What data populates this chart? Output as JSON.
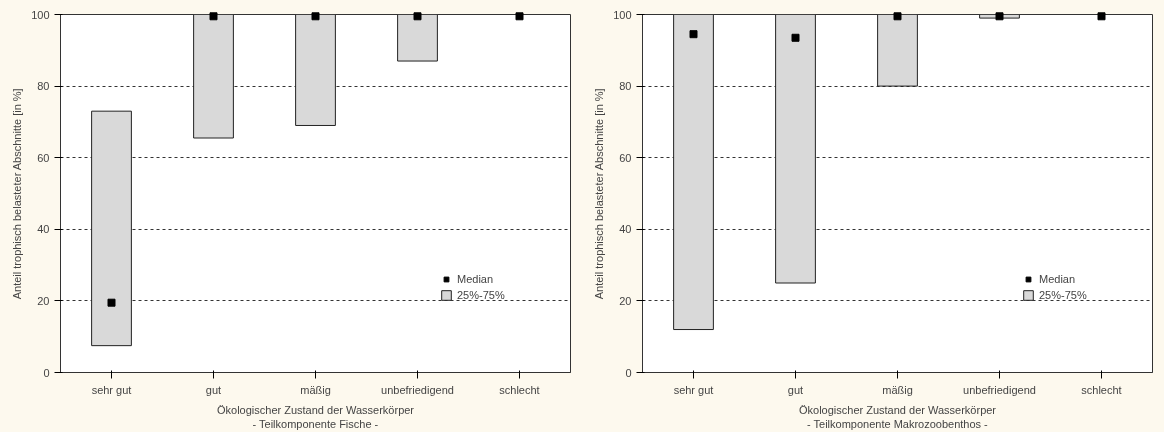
{
  "chart_data": [
    {
      "type": "bar",
      "categories": [
        "sehr gut",
        "gut",
        "mäßig",
        "unbefriedigend",
        "schlecht"
      ],
      "xlabel": "Ökologischer Zustand der Wasserkörper\n- Teilkomponente Fische -",
      "ylabel": "Anteil trophisch belasteter Abschnitte [in %]",
      "ylim": [
        0,
        100
      ],
      "yticks": [
        0,
        20,
        40,
        60,
        80,
        100
      ],
      "grid": "y",
      "legend": "right",
      "series": [
        {
          "name": "Median",
          "type": "scatter",
          "marker": "square",
          "color": "#000000",
          "values": [
            19.5,
            99.5,
            99.5,
            99.5,
            99.5
          ]
        },
        {
          "name": "25%-75%",
          "color": "#d9d9d9",
          "base": [
            7.5,
            65.5,
            69,
            87,
            null
          ],
          "values": [
            65.5,
            34.5,
            31,
            13,
            null
          ]
        }
      ]
    },
    {
      "type": "bar",
      "categories": [
        "sehr gut",
        "gut",
        "mäßig",
        "unbefriedigend",
        "schlecht"
      ],
      "xlabel": "Ökologischer Zustand der Wasserkörper\n- Teilkomponente Makrozoobenthos -",
      "ylabel": "Anteil trophisch belasteter Abschnitte [in %]",
      "ylim": [
        0,
        100
      ],
      "yticks": [
        0,
        20,
        40,
        60,
        80,
        100
      ],
      "grid": "y",
      "legend": "right",
      "series": [
        {
          "name": "Median",
          "type": "scatter",
          "marker": "square",
          "color": "#000000",
          "values": [
            94.5,
            93.5,
            99.5,
            99.5,
            99.5
          ]
        },
        {
          "name": "25%-75%",
          "color": "#d9d9d9",
          "base": [
            12,
            25,
            80,
            99,
            null
          ],
          "values": [
            88,
            75,
            20,
            1,
            null
          ]
        }
      ]
    }
  ]
}
